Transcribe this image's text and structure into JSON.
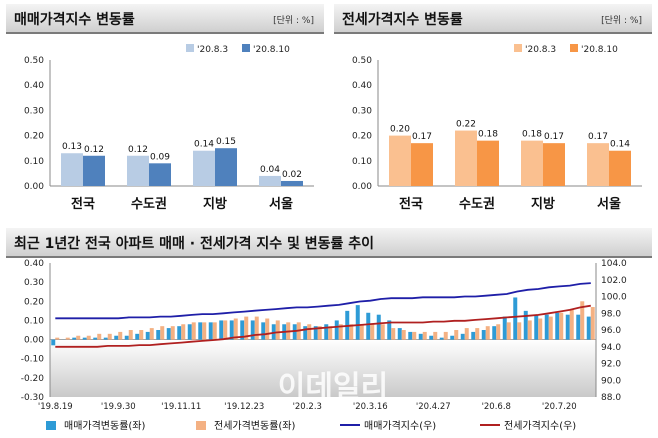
{
  "chart_data": [
    {
      "type": "bar",
      "title": "매매가격지수 변동률",
      "unit": "[단위 : %]",
      "categories": [
        "전국",
        "수도권",
        "지방",
        "서울"
      ],
      "series": [
        {
          "name": "'20.8.3",
          "values": [
            0.13,
            0.12,
            0.14,
            0.04
          ],
          "labels": [
            "0.13",
            "0.12",
            "0.14",
            "0.04"
          ]
        },
        {
          "name": "'20.8.10",
          "values": [
            0.12,
            0.09,
            0.15,
            0.02
          ],
          "labels": [
            "0.12",
            "0.09",
            "0.15",
            "0.02"
          ]
        }
      ],
      "ylim": [
        0,
        0.5
      ],
      "yticks": [
        "0.00",
        "0.10",
        "0.20",
        "0.30",
        "0.40",
        "0.50"
      ],
      "colors": [
        "#b8cce4",
        "#4f81bd"
      ],
      "legend": "top-right"
    },
    {
      "type": "bar",
      "title": "전세가격지수 변동률",
      "unit": "[단위 : %]",
      "categories": [
        "전국",
        "수도권",
        "지방",
        "서울"
      ],
      "series": [
        {
          "name": "'20.8.3",
          "values": [
            0.2,
            0.22,
            0.18,
            0.17
          ],
          "labels": [
            "0.20",
            "0.22",
            "0.18",
            "0.17"
          ]
        },
        {
          "name": "'20.8.10",
          "values": [
            0.17,
            0.18,
            0.17,
            0.14
          ],
          "labels": [
            "0.17",
            "0.18",
            "0.17",
            "0.14"
          ]
        }
      ],
      "ylim": [
        0,
        0.5
      ],
      "yticks": [
        "0.00",
        "0.10",
        "0.20",
        "0.30",
        "0.40",
        "0.50"
      ],
      "colors": [
        "#fac090",
        "#f79646"
      ],
      "legend": "top-right"
    },
    {
      "type": "bar+line",
      "title": "최근 1년간 전국 아파트 매매 · 전세가격 지수 및 변동률 추이",
      "ylim_left": [
        -0.3,
        0.4
      ],
      "yticks_left": [
        "0.40",
        "0.30",
        "0.20",
        "0.10",
        "0.00",
        "-0.10",
        "-0.20",
        "-0.30"
      ],
      "ylim_right": [
        88.0,
        104.0
      ],
      "yticks_right": [
        "104.0",
        "102.0",
        "100.0",
        "98.0",
        "96.0",
        "94.0",
        "92.0",
        "90.0",
        "88.0"
      ],
      "xticks": [
        "'19.8.19",
        "'19.9.30",
        "'19.11.11",
        "'19.12.23",
        "'20.2.3",
        "'20.3.16",
        "'20.4.27",
        "'20.6.8",
        "'20.7.20"
      ],
      "weeks": 52,
      "series": [
        {
          "name": "매매가격변동률(좌)",
          "axis": "left",
          "kind": "bar",
          "color": "#2e9bd6",
          "values": [
            -0.03,
            0.0,
            0.01,
            0.01,
            0.01,
            0.01,
            0.02,
            0.02,
            0.03,
            0.04,
            0.05,
            0.06,
            0.07,
            0.08,
            0.09,
            0.09,
            0.1,
            0.1,
            0.1,
            0.1,
            0.09,
            0.08,
            0.08,
            0.08,
            0.07,
            0.07,
            0.08,
            0.1,
            0.15,
            0.18,
            0.14,
            0.13,
            0.1,
            0.06,
            0.04,
            0.03,
            0.02,
            0.01,
            0.02,
            0.03,
            0.04,
            0.05,
            0.07,
            0.12,
            0.22,
            0.15,
            0.13,
            0.13,
            0.14,
            0.13,
            0.13,
            0.12
          ]
        },
        {
          "name": "전세가격변동률(좌)",
          "axis": "left",
          "kind": "bar",
          "color": "#f4b183",
          "values": [
            0.01,
            0.01,
            0.02,
            0.02,
            0.03,
            0.03,
            0.04,
            0.05,
            0.05,
            0.06,
            0.07,
            0.07,
            0.08,
            0.09,
            0.09,
            0.09,
            0.1,
            0.11,
            0.12,
            0.12,
            0.11,
            0.1,
            0.09,
            0.09,
            0.08,
            0.07,
            0.07,
            0.08,
            0.08,
            0.08,
            0.08,
            0.08,
            0.06,
            0.05,
            0.04,
            0.04,
            0.04,
            0.04,
            0.05,
            0.06,
            0.06,
            0.07,
            0.08,
            0.09,
            0.09,
            0.1,
            0.11,
            0.12,
            0.14,
            0.16,
            0.2,
            0.17
          ]
        },
        {
          "name": "매매가격지수(우)",
          "axis": "right",
          "kind": "line",
          "color": "#1f1fa8",
          "values": [
            97.4,
            97.4,
            97.4,
            97.4,
            97.4,
            97.4,
            97.4,
            97.5,
            97.5,
            97.5,
            97.6,
            97.6,
            97.7,
            97.8,
            97.9,
            97.9,
            98.0,
            98.1,
            98.2,
            98.3,
            98.4,
            98.5,
            98.6,
            98.7,
            98.7,
            98.8,
            98.9,
            99.0,
            99.2,
            99.4,
            99.5,
            99.7,
            99.8,
            99.8,
            99.8,
            99.9,
            99.9,
            99.9,
            99.9,
            100.0,
            100.0,
            100.1,
            100.2,
            100.3,
            100.6,
            100.8,
            100.9,
            101.1,
            101.2,
            101.3,
            101.5,
            101.6
          ]
        },
        {
          "name": "전세가격지수(우)",
          "axis": "right",
          "kind": "line",
          "color": "#b02020",
          "values": [
            94.0,
            94.0,
            94.0,
            94.0,
            94.0,
            94.1,
            94.1,
            94.1,
            94.2,
            94.2,
            94.3,
            94.4,
            94.5,
            94.6,
            94.7,
            94.8,
            94.9,
            95.1,
            95.2,
            95.4,
            95.5,
            95.7,
            95.8,
            95.9,
            96.1,
            96.2,
            96.3,
            96.4,
            96.5,
            96.6,
            96.7,
            96.8,
            96.9,
            96.9,
            96.9,
            96.9,
            97.0,
            97.0,
            97.1,
            97.1,
            97.2,
            97.3,
            97.4,
            97.5,
            97.6,
            97.7,
            97.8,
            98.0,
            98.2,
            98.4,
            98.7,
            98.9
          ]
        }
      ],
      "watermark": "이데일리"
    }
  ]
}
